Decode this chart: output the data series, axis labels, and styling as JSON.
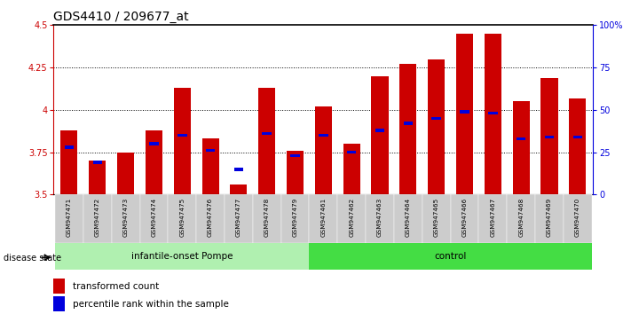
{
  "title": "GDS4410 / 209677_at",
  "samples": [
    "GSM947471",
    "GSM947472",
    "GSM947473",
    "GSM947474",
    "GSM947475",
    "GSM947476",
    "GSM947477",
    "GSM947478",
    "GSM947479",
    "GSM947461",
    "GSM947462",
    "GSM947463",
    "GSM947464",
    "GSM947465",
    "GSM947466",
    "GSM947467",
    "GSM947468",
    "GSM947469",
    "GSM947470"
  ],
  "red_values": [
    3.88,
    3.7,
    3.75,
    3.88,
    4.13,
    3.83,
    3.56,
    4.13,
    3.76,
    4.02,
    3.8,
    4.2,
    4.27,
    4.3,
    4.45,
    4.45,
    4.05,
    4.19,
    4.07
  ],
  "blue_values": [
    3.78,
    3.69,
    null,
    3.8,
    3.85,
    3.76,
    3.65,
    3.86,
    3.73,
    3.85,
    3.75,
    3.88,
    3.92,
    3.95,
    3.99,
    3.98,
    3.83,
    3.84,
    3.84
  ],
  "ymin": 3.5,
  "ymax": 4.5,
  "yticks": [
    3.5,
    3.75,
    4.0,
    4.25,
    4.5
  ],
  "ytick_labels": [
    "3.5",
    "3.75",
    "4",
    "4.25",
    "4.5"
  ],
  "right_yticks": [
    0,
    25,
    50,
    75,
    100
  ],
  "right_yticklabels": [
    "0",
    "25",
    "50",
    "75",
    "100%"
  ],
  "group1_label": "infantile-onset Pompe",
  "group2_label": "control",
  "group1_count": 9,
  "group2_count": 10,
  "disease_state_label": "disease state",
  "legend_red": "transformed count",
  "legend_blue": "percentile rank within the sample",
  "bar_color": "#cc0000",
  "blue_color": "#0000dd",
  "group1_bg": "#b0f0b0",
  "group2_bg": "#44dd44",
  "sample_bg": "#cccccc",
  "title_fontsize": 10,
  "tick_fontsize": 7,
  "label_fontsize": 8
}
